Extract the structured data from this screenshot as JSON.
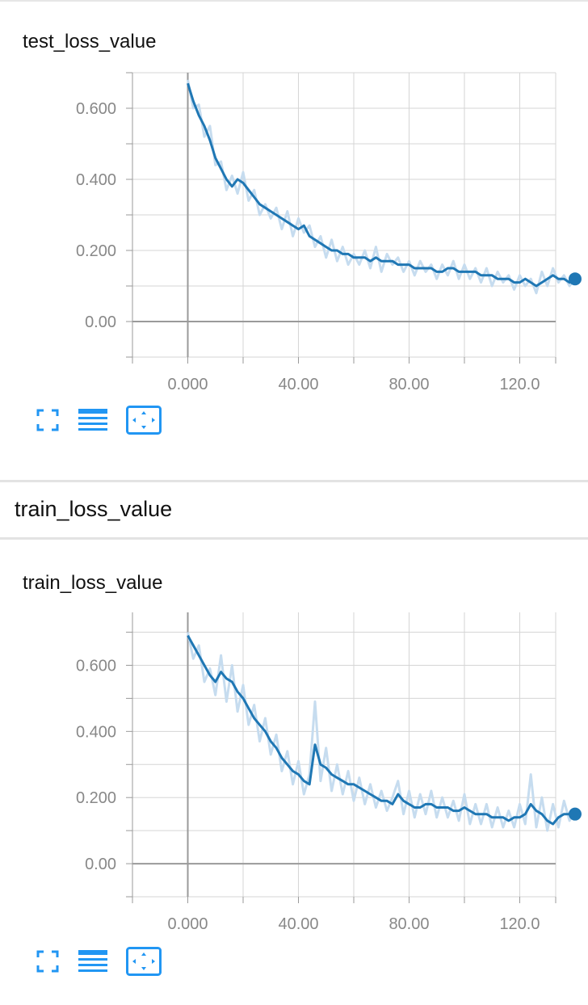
{
  "section": {
    "title": "train_loss_value"
  },
  "toolbar": {
    "icons": [
      "expand-icon",
      "data-table-icon",
      "fit-domain-icon"
    ],
    "accent": "#2196f3"
  },
  "colors": {
    "line": "#1f77b4",
    "raw": "#c6dcef",
    "grid": "#d5d5d5",
    "axis": "#9a9a9a"
  },
  "chart_data": [
    {
      "type": "line",
      "title": "test_loss_value",
      "xlim": [
        -20,
        133
      ],
      "ylim": [
        -0.1,
        0.7
      ],
      "x_ticks": [
        "0.000",
        "40.00",
        "80.00",
        "120.0"
      ],
      "y_ticks": [
        "0.00",
        "0.200",
        "0.400",
        "0.600"
      ],
      "grid": true,
      "series": [
        {
          "smoothed": true,
          "x": [
            0,
            2,
            4,
            6,
            8,
            10,
            12,
            14,
            16,
            18,
            20,
            22,
            24,
            26,
            28,
            30,
            32,
            34,
            36,
            38,
            40,
            42,
            44,
            46,
            48,
            50,
            52,
            54,
            56,
            58,
            60,
            62,
            64,
            66,
            68,
            70,
            72,
            74,
            76,
            78,
            80,
            82,
            84,
            86,
            88,
            90,
            92,
            94,
            96,
            98,
            100,
            102,
            104,
            106,
            108,
            110,
            112,
            114,
            116,
            118,
            120,
            122,
            124,
            126,
            128,
            130,
            132,
            134,
            136,
            138,
            140
          ],
          "y": [
            0.67,
            0.62,
            0.58,
            0.55,
            0.51,
            0.46,
            0.43,
            0.4,
            0.38,
            0.4,
            0.39,
            0.37,
            0.35,
            0.33,
            0.32,
            0.31,
            0.3,
            0.29,
            0.28,
            0.27,
            0.26,
            0.27,
            0.24,
            0.23,
            0.22,
            0.21,
            0.2,
            0.2,
            0.19,
            0.19,
            0.18,
            0.18,
            0.18,
            0.17,
            0.18,
            0.17,
            0.17,
            0.17,
            0.16,
            0.16,
            0.16,
            0.15,
            0.15,
            0.15,
            0.15,
            0.14,
            0.14,
            0.15,
            0.15,
            0.14,
            0.14,
            0.14,
            0.14,
            0.13,
            0.13,
            0.13,
            0.12,
            0.12,
            0.12,
            0.11,
            0.11,
            0.12,
            0.11,
            0.1,
            0.11,
            0.12,
            0.13,
            0.12,
            0.12,
            0.11,
            0.12
          ]
        },
        {
          "smoothed": false,
          "x": [
            0,
            2,
            4,
            6,
            8,
            10,
            12,
            14,
            16,
            18,
            20,
            22,
            24,
            26,
            28,
            30,
            32,
            34,
            36,
            38,
            40,
            42,
            44,
            46,
            48,
            50,
            52,
            54,
            56,
            58,
            60,
            62,
            64,
            66,
            68,
            70,
            72,
            74,
            76,
            78,
            80,
            82,
            84,
            86,
            88,
            90,
            92,
            94,
            96,
            98,
            100,
            102,
            104,
            106,
            108,
            110,
            112,
            114,
            116,
            118,
            120,
            122,
            124,
            126,
            128,
            130,
            132,
            134,
            136,
            138,
            140
          ],
          "y": [
            0.68,
            0.6,
            0.61,
            0.52,
            0.55,
            0.44,
            0.45,
            0.37,
            0.41,
            0.36,
            0.42,
            0.34,
            0.37,
            0.3,
            0.33,
            0.29,
            0.32,
            0.26,
            0.31,
            0.24,
            0.29,
            0.25,
            0.27,
            0.21,
            0.24,
            0.18,
            0.23,
            0.17,
            0.21,
            0.16,
            0.19,
            0.16,
            0.2,
            0.15,
            0.21,
            0.14,
            0.19,
            0.16,
            0.18,
            0.14,
            0.17,
            0.13,
            0.17,
            0.14,
            0.16,
            0.12,
            0.16,
            0.13,
            0.17,
            0.12,
            0.16,
            0.12,
            0.15,
            0.11,
            0.15,
            0.1,
            0.14,
            0.11,
            0.13,
            0.09,
            0.13,
            0.1,
            0.12,
            0.08,
            0.14,
            0.1,
            0.15,
            0.11,
            0.13,
            0.1,
            0.12
          ]
        }
      ]
    },
    {
      "type": "line",
      "title": "train_loss_value",
      "xlim": [
        -20,
        133
      ],
      "ylim": [
        -0.1,
        0.76
      ],
      "x_ticks": [
        "0.000",
        "40.00",
        "80.00",
        "120.0"
      ],
      "y_ticks": [
        "0.00",
        "0.200",
        "0.400",
        "0.600"
      ],
      "grid": true,
      "series": [
        {
          "smoothed": true,
          "x": [
            0,
            2,
            4,
            6,
            8,
            10,
            12,
            14,
            16,
            18,
            20,
            22,
            24,
            26,
            28,
            30,
            32,
            34,
            36,
            38,
            40,
            42,
            44,
            46,
            48,
            50,
            52,
            54,
            56,
            58,
            60,
            62,
            64,
            66,
            68,
            70,
            72,
            74,
            76,
            78,
            80,
            82,
            84,
            86,
            88,
            90,
            92,
            94,
            96,
            98,
            100,
            102,
            104,
            106,
            108,
            110,
            112,
            114,
            116,
            118,
            120,
            122,
            124,
            126,
            128,
            130,
            132,
            134,
            136,
            138,
            140
          ],
          "y": [
            0.69,
            0.66,
            0.63,
            0.6,
            0.57,
            0.55,
            0.58,
            0.56,
            0.55,
            0.52,
            0.5,
            0.47,
            0.44,
            0.42,
            0.4,
            0.37,
            0.35,
            0.32,
            0.3,
            0.28,
            0.27,
            0.25,
            0.24,
            0.36,
            0.3,
            0.29,
            0.27,
            0.26,
            0.25,
            0.24,
            0.24,
            0.23,
            0.22,
            0.21,
            0.2,
            0.19,
            0.19,
            0.18,
            0.21,
            0.19,
            0.18,
            0.17,
            0.17,
            0.18,
            0.18,
            0.17,
            0.17,
            0.17,
            0.16,
            0.16,
            0.17,
            0.16,
            0.15,
            0.15,
            0.15,
            0.14,
            0.14,
            0.14,
            0.13,
            0.14,
            0.14,
            0.15,
            0.18,
            0.16,
            0.15,
            0.13,
            0.12,
            0.14,
            0.15,
            0.15,
            0.15
          ]
        },
        {
          "smoothed": false,
          "x": [
            0,
            2,
            4,
            6,
            8,
            10,
            12,
            14,
            16,
            18,
            20,
            22,
            24,
            26,
            28,
            30,
            32,
            34,
            36,
            38,
            40,
            42,
            44,
            46,
            48,
            50,
            52,
            54,
            56,
            58,
            60,
            62,
            64,
            66,
            68,
            70,
            72,
            74,
            76,
            78,
            80,
            82,
            84,
            86,
            88,
            90,
            92,
            94,
            96,
            98,
            100,
            102,
            104,
            106,
            108,
            110,
            112,
            114,
            116,
            118,
            120,
            122,
            124,
            126,
            128,
            130,
            132,
            134,
            136,
            138,
            140
          ],
          "y": [
            0.7,
            0.62,
            0.66,
            0.55,
            0.59,
            0.51,
            0.63,
            0.49,
            0.6,
            0.46,
            0.54,
            0.42,
            0.48,
            0.37,
            0.44,
            0.33,
            0.39,
            0.28,
            0.34,
            0.24,
            0.31,
            0.21,
            0.27,
            0.49,
            0.25,
            0.35,
            0.22,
            0.3,
            0.21,
            0.28,
            0.19,
            0.26,
            0.18,
            0.24,
            0.17,
            0.22,
            0.16,
            0.2,
            0.25,
            0.15,
            0.22,
            0.14,
            0.21,
            0.15,
            0.22,
            0.14,
            0.2,
            0.14,
            0.19,
            0.13,
            0.21,
            0.12,
            0.18,
            0.12,
            0.18,
            0.11,
            0.17,
            0.11,
            0.16,
            0.11,
            0.18,
            0.12,
            0.27,
            0.11,
            0.2,
            0.1,
            0.18,
            0.11,
            0.19,
            0.13,
            0.16
          ]
        }
      ]
    }
  ]
}
